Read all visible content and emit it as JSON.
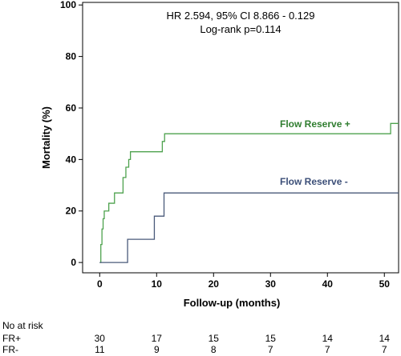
{
  "chart_data": {
    "type": "line",
    "subtype": "kaplan-meier-step",
    "title": "",
    "annotations": [
      "HR 2.594, 95% CI 8.866 - 0.129",
      "Log-rank p=0.114"
    ],
    "xlabel": "Follow-up (months)",
    "ylabel": "Mortality (%)",
    "xlim": [
      -3,
      52.5
    ],
    "ylim": [
      -4,
      101
    ],
    "xticks": [
      0,
      10,
      20,
      30,
      40,
      50
    ],
    "yticks": [
      0,
      20,
      40,
      60,
      80,
      100
    ],
    "grid": false,
    "series": [
      {
        "name": "Flow Reserve +",
        "color": "#4ea24e",
        "steps": [
          [
            0,
            0
          ],
          [
            0.2,
            7
          ],
          [
            0.4,
            13
          ],
          [
            0.6,
            17
          ],
          [
            0.8,
            20
          ],
          [
            1.5,
            20
          ],
          [
            1.6,
            23
          ],
          [
            2.5,
            23
          ],
          [
            2.6,
            27
          ],
          [
            4,
            27
          ],
          [
            4.1,
            33
          ],
          [
            4.5,
            33
          ],
          [
            4.6,
            37
          ],
          [
            5,
            37
          ],
          [
            5.1,
            40
          ],
          [
            5.3,
            40
          ],
          [
            5.4,
            43
          ],
          [
            10.9,
            43
          ],
          [
            11,
            47
          ],
          [
            11.3,
            47
          ],
          [
            11.4,
            50
          ],
          [
            51,
            50
          ],
          [
            51.1,
            54
          ],
          [
            52.5,
            54
          ]
        ]
      },
      {
        "name": "Flow Reserve -",
        "color": "#4a5a7a",
        "steps": [
          [
            0,
            0
          ],
          [
            4.8,
            0
          ],
          [
            4.9,
            9
          ],
          [
            9.5,
            9
          ],
          [
            9.6,
            18
          ],
          [
            11.2,
            18
          ],
          [
            11.3,
            27
          ],
          [
            52.5,
            27
          ]
        ]
      }
    ],
    "risk_table": {
      "title": "No at risk",
      "times": [
        0,
        10,
        20,
        30,
        40,
        50
      ],
      "rows": [
        {
          "label": "FR+",
          "values": [
            30,
            17,
            15,
            15,
            14,
            14
          ]
        },
        {
          "label": "FR-",
          "values": [
            11,
            9,
            8,
            7,
            7,
            7
          ]
        }
      ]
    }
  }
}
